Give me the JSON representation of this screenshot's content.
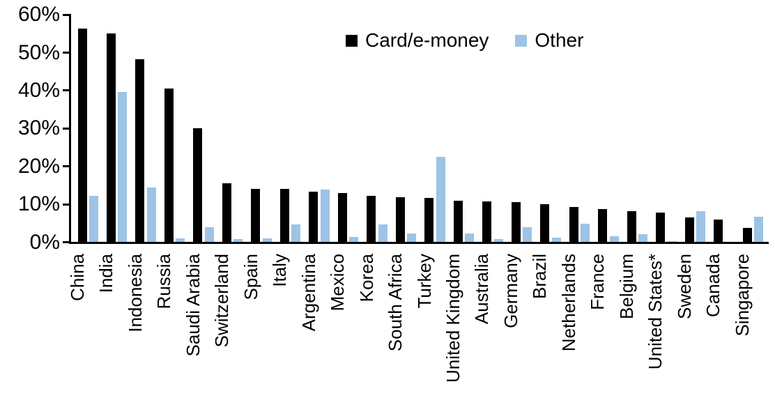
{
  "chart_data": {
    "type": "bar",
    "title": "",
    "xlabel": "",
    "ylabel": "",
    "ylim": [
      0,
      60
    ],
    "yticks": [
      "0%",
      "10%",
      "20%",
      "30%",
      "40%",
      "50%",
      "60%"
    ],
    "grid": false,
    "legend_position": "top-center",
    "categories": [
      "China",
      "India",
      "Indonesia",
      "Russia",
      "Saudi Arabia",
      "Switzerland",
      "Spain",
      "Italy",
      "Argentina",
      "Mexico",
      "Korea",
      "South Africa",
      "Turkey",
      "United Kingdom",
      "Australia",
      "Germany",
      "Brazil",
      "Netherlands",
      "France",
      "Belgium",
      "United States*",
      "Sweden",
      "Canada",
      "Singapore"
    ],
    "series": [
      {
        "name": "Card/e-money",
        "color": "#000000",
        "values": [
          56.3,
          55.0,
          48.3,
          40.5,
          30.0,
          15.6,
          14.1,
          14.0,
          13.3,
          12.9,
          12.2,
          11.8,
          11.6,
          11.0,
          10.7,
          10.5,
          10.0,
          9.2,
          8.7,
          8.1,
          7.8,
          6.5,
          5.9,
          3.8
        ]
      },
      {
        "name": "Other",
        "color": "#9DC3E6",
        "values": [
          12.3,
          39.7,
          14.4,
          1.1,
          3.9,
          0.8,
          1.0,
          4.6,
          13.8,
          1.4,
          4.6,
          2.3,
          22.5,
          2.3,
          0.9,
          3.9,
          1.2,
          4.8,
          1.6,
          2.1,
          0.3,
          8.1,
          0.0,
          6.7
        ]
      }
    ]
  }
}
